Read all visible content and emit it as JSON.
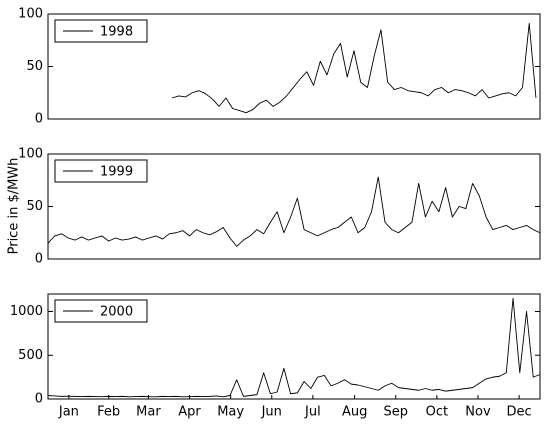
{
  "ylabel": "Price in $/MWh",
  "chart_data": [
    {
      "type": "line",
      "xlim": [
        0,
        365
      ],
      "ylim": [
        0,
        100
      ],
      "yticks": [
        0,
        50,
        100
      ],
      "x": [
        92,
        97,
        102,
        107,
        112,
        117,
        122,
        127,
        132,
        137,
        142,
        147,
        152,
        157,
        162,
        167,
        172,
        177,
        182,
        187,
        192,
        197,
        202,
        207,
        212,
        217,
        222,
        227,
        232,
        237,
        242,
        247,
        252,
        257,
        262,
        267,
        272,
        277,
        282,
        287,
        292,
        297,
        302,
        307,
        312,
        317,
        322,
        327,
        332,
        337,
        342,
        347,
        352,
        357,
        362
      ],
      "series": [
        {
          "name": "1998",
          "color": "#000000",
          "values": [
            20,
            22,
            21,
            25,
            27,
            24,
            19,
            12,
            20,
            10,
            8,
            6,
            9,
            15,
            18,
            12,
            16,
            22,
            30,
            38,
            45,
            32,
            55,
            42,
            62,
            72,
            40,
            65,
            35,
            30,
            60,
            85,
            35,
            28,
            30,
            27,
            26,
            25,
            22,
            28,
            30,
            25,
            28,
            27,
            25,
            22,
            28,
            20,
            22,
            24,
            25,
            22,
            30,
            91,
            20
          ]
        }
      ],
      "legend": "upper left"
    },
    {
      "type": "line",
      "xlim": [
        0,
        365
      ],
      "ylim": [
        0,
        100
      ],
      "yticks": [
        0,
        50,
        100
      ],
      "x": [
        0,
        5,
        10,
        15,
        20,
        25,
        30,
        35,
        40,
        45,
        50,
        55,
        60,
        65,
        70,
        75,
        80,
        85,
        90,
        95,
        100,
        105,
        110,
        115,
        120,
        125,
        130,
        135,
        140,
        145,
        150,
        155,
        160,
        165,
        170,
        175,
        180,
        185,
        190,
        195,
        200,
        205,
        210,
        215,
        220,
        225,
        230,
        235,
        240,
        245,
        250,
        255,
        260,
        265,
        270,
        275,
        280,
        285,
        290,
        295,
        300,
        305,
        310,
        315,
        320,
        325,
        330,
        335,
        340,
        345,
        350,
        355,
        360,
        365
      ],
      "series": [
        {
          "name": "1999",
          "color": "#000000",
          "values": [
            15,
            22,
            24,
            20,
            18,
            21,
            18,
            20,
            22,
            17,
            20,
            18,
            19,
            21,
            18,
            20,
            22,
            19,
            24,
            25,
            27,
            22,
            28,
            25,
            23,
            26,
            30,
            20,
            12,
            18,
            22,
            28,
            24,
            35,
            45,
            25,
            40,
            58,
            28,
            25,
            22,
            25,
            28,
            30,
            35,
            40,
            25,
            30,
            45,
            78,
            35,
            28,
            25,
            30,
            35,
            72,
            40,
            55,
            45,
            68,
            40,
            50,
            48,
            72,
            60,
            40,
            28,
            30,
            32,
            28,
            30,
            32,
            28,
            25
          ]
        }
      ],
      "legend": "upper left"
    },
    {
      "type": "line",
      "xlim": [
        0,
        365
      ],
      "ylim": [
        0,
        1200
      ],
      "yticks": [
        0,
        500,
        1000
      ],
      "x": [
        0,
        5,
        10,
        15,
        20,
        25,
        30,
        35,
        40,
        45,
        50,
        55,
        60,
        65,
        70,
        75,
        80,
        85,
        90,
        95,
        100,
        105,
        110,
        115,
        120,
        125,
        130,
        135,
        140,
        145,
        150,
        155,
        160,
        165,
        170,
        175,
        180,
        185,
        190,
        195,
        200,
        205,
        210,
        215,
        220,
        225,
        230,
        235,
        240,
        245,
        250,
        255,
        260,
        265,
        270,
        275,
        280,
        285,
        290,
        295,
        300,
        305,
        310,
        315,
        320,
        325,
        330,
        335,
        340,
        345,
        350,
        355,
        360,
        365
      ],
      "xticks": [
        {
          "value": 15.5,
          "label": "Jan"
        },
        {
          "value": 45,
          "label": "Feb"
        },
        {
          "value": 74.5,
          "label": "Mar"
        },
        {
          "value": 105,
          "label": "Apr"
        },
        {
          "value": 135.5,
          "label": "May"
        },
        {
          "value": 166,
          "label": "Jun"
        },
        {
          "value": 196.5,
          "label": "Jul"
        },
        {
          "value": 227.5,
          "label": "Aug"
        },
        {
          "value": 258,
          "label": "Sep"
        },
        {
          "value": 288.5,
          "label": "Oct"
        },
        {
          "value": 319,
          "label": "Nov"
        },
        {
          "value": 349.5,
          "label": "Dec"
        }
      ],
      "series": [
        {
          "name": "2000",
          "color": "#000000",
          "values": [
            40,
            35,
            30,
            32,
            30,
            28,
            30,
            28,
            27,
            30,
            28,
            30,
            25,
            28,
            30,
            27,
            25,
            30,
            28,
            30,
            25,
            27,
            30,
            28,
            30,
            35,
            25,
            40,
            220,
            30,
            40,
            50,
            300,
            60,
            80,
            350,
            60,
            70,
            200,
            120,
            250,
            270,
            150,
            180,
            220,
            170,
            160,
            140,
            120,
            100,
            150,
            180,
            130,
            120,
            110,
            100,
            120,
            100,
            110,
            90,
            100,
            110,
            120,
            130,
            180,
            230,
            250,
            260,
            300,
            1150,
            300,
            1000,
            250,
            280
          ]
        }
      ],
      "legend": "upper left"
    }
  ]
}
